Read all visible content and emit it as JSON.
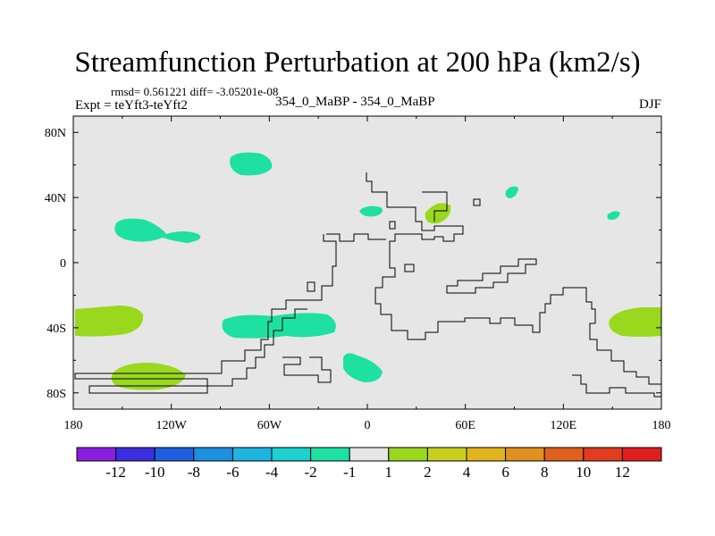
{
  "header": {
    "title": "Streamfunction Perturbation at 200 hPa (km2/s)",
    "stats": "rmsd= 0.561221 diff= -3.05201e-08",
    "expt": "Expt = teYft3-teYft2",
    "case": "354_0_MaBP - 354_0_MaBP",
    "season": "DJF"
  },
  "chart_data": {
    "type": "heatmap",
    "title": "Streamfunction Perturbation at 200 hPa (km2/s)",
    "subtitle": "354_0_MaBP - 354_0_MaBP",
    "season": "DJF",
    "xlim": [
      -180,
      180
    ],
    "ylim": [
      -90,
      90
    ],
    "x_ticks": [
      {
        "value": -180,
        "label": "180"
      },
      {
        "value": -120,
        "label": "120W"
      },
      {
        "value": -60,
        "label": "60W"
      },
      {
        "value": 0,
        "label": "0"
      },
      {
        "value": 60,
        "label": "60E"
      },
      {
        "value": 120,
        "label": "120E"
      },
      {
        "value": 180,
        "label": "180"
      }
    ],
    "y_ticks": [
      {
        "value": 80,
        "label": "80N"
      },
      {
        "value": 40,
        "label": "40N"
      },
      {
        "value": 0,
        "label": "0"
      },
      {
        "value": -40,
        "label": "40S"
      },
      {
        "value": -80,
        "label": "80S"
      }
    ],
    "colorbar": {
      "levels": [
        "-12",
        "-10",
        "-8",
        "-6",
        "-4",
        "-2",
        "-1",
        "1",
        "2",
        "4",
        "6",
        "8",
        "10",
        "12"
      ],
      "colors": [
        "#8a1ee0",
        "#3a2ee0",
        "#1e60e0",
        "#1e90e0",
        "#1eb4e0",
        "#1ed0d0",
        "#1ee0a0",
        "#e6e6e6",
        "#9ad81e",
        "#c8d01e",
        "#e0b41e",
        "#e0901e",
        "#e0601e",
        "#e03c1e",
        "#e01e1e"
      ]
    },
    "regions": [
      {
        "name": "north-atlantic-negative",
        "lon": -70,
        "lat": 62,
        "level": "-2 to -1",
        "color": "#1ee0a0"
      },
      {
        "name": "north-pacific-negative",
        "lon": -130,
        "lat": 21,
        "level": "-2 to -1",
        "color": "#1ee0a0"
      },
      {
        "name": "europe-negative",
        "lon": 2,
        "lat": 32,
        "level": "-2 to -1",
        "color": "#1ee0a0"
      },
      {
        "name": "central-asia-positive",
        "lon": 42,
        "lat": 31,
        "level": "1 to 2",
        "color": "#9ad81e"
      },
      {
        "name": "east-asia-negative",
        "lon": 88,
        "lat": 44,
        "level": "-2 to -1",
        "color": "#1ee0a0"
      },
      {
        "name": "north-pacific-east-negative",
        "lon": 151,
        "lat": 29,
        "level": "-2 to -1",
        "color": "#1ee0a0"
      },
      {
        "name": "south-pacific-positive",
        "lon": -160,
        "lat": -35,
        "level": "1 to 2",
        "color": "#9ad81e"
      },
      {
        "name": "south-america-negative",
        "lon": -50,
        "lat": -38,
        "level": "-2 to -1",
        "color": "#1ee0a0"
      },
      {
        "name": "south-atlantic-negative",
        "lon": 3,
        "lat": -67,
        "level": "-2 to -1",
        "color": "#1ee0a0"
      },
      {
        "name": "southern-ocean-positive",
        "lon": -142,
        "lat": -68,
        "level": "1 to 2",
        "color": "#9ad81e"
      },
      {
        "name": "south-pacific-east-positive",
        "lon": 164,
        "lat": -36,
        "level": "1 to 2",
        "color": "#9ad81e"
      }
    ]
  }
}
